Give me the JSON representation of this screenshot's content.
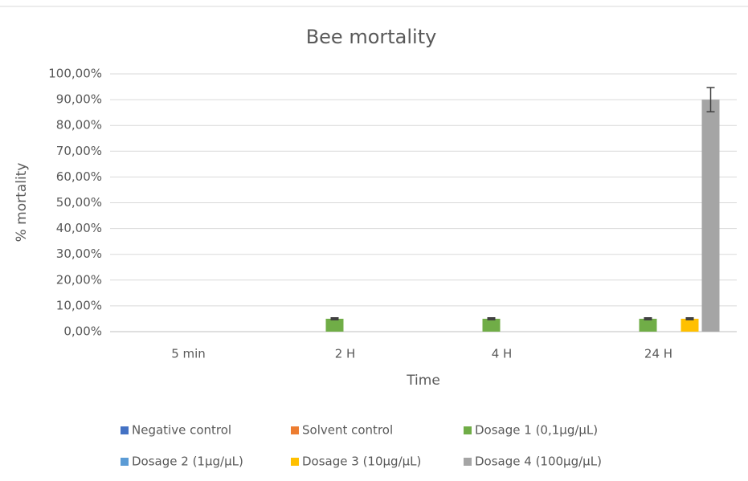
{
  "chart_data": {
    "type": "bar",
    "title": "Bee mortality",
    "x_label": "Time",
    "y_label": "% mortality",
    "categories": [
      "5 min",
      "2 H",
      "4 H",
      "24 H"
    ],
    "series": [
      {
        "name": "Negative control",
        "color": "#4472c4",
        "values": [
          0,
          0,
          0,
          0
        ],
        "errors": [
          null,
          null,
          null,
          null
        ]
      },
      {
        "name": "Solvent control",
        "color": "#ed7d31",
        "values": [
          0,
          0,
          0,
          0
        ],
        "errors": [
          null,
          null,
          null,
          null
        ]
      },
      {
        "name": "Dosage 1 (0,1µg/µL)",
        "color": "#70ad47",
        "values": [
          0,
          5,
          5,
          5
        ],
        "errors": [
          null,
          0,
          0,
          0
        ]
      },
      {
        "name": "Dosage 2 (1µg/µL)",
        "color": "#5b9bd5",
        "values": [
          0,
          0,
          0,
          0
        ],
        "errors": [
          null,
          null,
          null,
          null
        ]
      },
      {
        "name": "Dosage 3 (10µg/µL)",
        "color": "#ffc000",
        "values": [
          0,
          0,
          0,
          5
        ],
        "errors": [
          null,
          null,
          null,
          0
        ]
      },
      {
        "name": "Dosage 4 (100µg/µL)",
        "color": "#a5a5a5",
        "values": [
          0,
          0,
          0,
          90
        ],
        "errors": [
          null,
          null,
          null,
          4.7
        ]
      }
    ],
    "ylim": [
      0,
      100
    ],
    "yticks": [
      {
        "value": 0,
        "label": "0,00%"
      },
      {
        "value": 10,
        "label": "10,00%"
      },
      {
        "value": 20,
        "label": "20,00%"
      },
      {
        "value": 30,
        "label": "30,00%"
      },
      {
        "value": 40,
        "label": "40,00%"
      },
      {
        "value": 50,
        "label": "50,00%"
      },
      {
        "value": 60,
        "label": "60,00%"
      },
      {
        "value": 70,
        "label": "70,00%"
      },
      {
        "value": 80,
        "label": "80,00%"
      },
      {
        "value": 90,
        "label": "90,00%"
      },
      {
        "value": 100,
        "label": "100,00%"
      }
    ],
    "grid": true,
    "legend": "bottom"
  }
}
